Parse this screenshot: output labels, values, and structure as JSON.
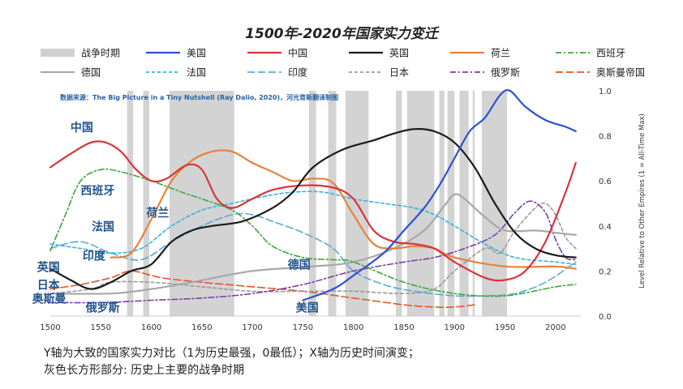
{
  "chart_data": {
    "type": "line",
    "title": "1500年-2020年国家实力变迁",
    "source": "数据来源：The Big Picture in a Tiny Nutshell (Ray Dalio, 2020)，河光育新翻译制图",
    "xlabel": "",
    "ylabel": "Level Relative to Other Empires (1 = All-Time Max)",
    "xlim": [
      1500,
      2025
    ],
    "ylim": [
      0,
      1.0
    ],
    "x_ticks": [
      1500,
      1550,
      1600,
      1650,
      1700,
      1750,
      1800,
      1850,
      1900,
      1950,
      2000
    ],
    "y_ticks": [
      "0.0",
      "0.2",
      "0.4",
      "0.6",
      "0.8",
      "1.0"
    ],
    "legend": [
      {
        "name": "战争时期",
        "color": "#d0d0d0",
        "dash": "bar"
      },
      {
        "name": "美国",
        "color": "#2f4fd4",
        "dash": "solid"
      },
      {
        "name": "中国",
        "color": "#d8343a",
        "dash": "solid"
      },
      {
        "name": "英国",
        "color": "#1a1a1a",
        "dash": "solid"
      },
      {
        "name": "荷兰",
        "color": "#e8823a",
        "dash": "solid"
      },
      {
        "name": "西班牙",
        "color": "#3aa83a",
        "dash": "dashdot"
      },
      {
        "name": "德国",
        "color": "#a8a8a8",
        "dash": "solid"
      },
      {
        "name": "法国",
        "color": "#33b3e0",
        "dash": "dash"
      },
      {
        "name": "印度",
        "color": "#5aa9d6",
        "dash": "longdash"
      },
      {
        "name": "日本",
        "color": "#9a9a9a",
        "dash": "dash"
      },
      {
        "name": "俄罗斯",
        "color": "#7a3fa8",
        "dash": "dashdot"
      },
      {
        "name": "奥斯曼帝国",
        "color": "#e0582a",
        "dash": "longdash"
      }
    ],
    "war_periods": [
      [
        1576,
        1582
      ],
      [
        1592,
        1598
      ],
      [
        1618,
        1682
      ],
      [
        1756,
        1763
      ],
      [
        1775,
        1783
      ],
      [
        1792,
        1815
      ],
      [
        1842,
        1848
      ],
      [
        1853,
        1880
      ],
      [
        1885,
        1890
      ],
      [
        1893,
        1900
      ],
      [
        1905,
        1914
      ],
      [
        1918,
        1920
      ],
      [
        1927,
        1952
      ]
    ],
    "series": [
      {
        "name": "中国",
        "points": [
          [
            1500,
            0.66
          ],
          [
            1520,
            0.72
          ],
          [
            1540,
            0.77
          ],
          [
            1555,
            0.77
          ],
          [
            1570,
            0.73
          ],
          [
            1585,
            0.65
          ],
          [
            1600,
            0.6
          ],
          [
            1615,
            0.61
          ],
          [
            1635,
            0.67
          ],
          [
            1650,
            0.65
          ],
          [
            1665,
            0.52
          ],
          [
            1680,
            0.48
          ],
          [
            1700,
            0.52
          ],
          [
            1720,
            0.56
          ],
          [
            1750,
            0.58
          ],
          [
            1780,
            0.57
          ],
          [
            1800,
            0.52
          ],
          [
            1820,
            0.38
          ],
          [
            1840,
            0.33
          ],
          [
            1860,
            0.32
          ],
          [
            1880,
            0.3
          ],
          [
            1900,
            0.24
          ],
          [
            1930,
            0.17
          ],
          [
            1950,
            0.16
          ],
          [
            1970,
            0.2
          ],
          [
            1990,
            0.33
          ],
          [
            2010,
            0.55
          ],
          [
            2020,
            0.68
          ]
        ]
      },
      {
        "name": "美国",
        "points": [
          [
            1750,
            0.07
          ],
          [
            1780,
            0.12
          ],
          [
            1800,
            0.18
          ],
          [
            1830,
            0.28
          ],
          [
            1850,
            0.38
          ],
          [
            1870,
            0.48
          ],
          [
            1885,
            0.58
          ],
          [
            1900,
            0.7
          ],
          [
            1915,
            0.82
          ],
          [
            1930,
            0.88
          ],
          [
            1945,
            0.98
          ],
          [
            1955,
            1.0
          ],
          [
            1970,
            0.93
          ],
          [
            1990,
            0.87
          ],
          [
            2010,
            0.84
          ],
          [
            2020,
            0.82
          ]
        ]
      },
      {
        "name": "英国",
        "points": [
          [
            1500,
            0.21
          ],
          [
            1520,
            0.16
          ],
          [
            1540,
            0.12
          ],
          [
            1560,
            0.15
          ],
          [
            1580,
            0.2
          ],
          [
            1600,
            0.23
          ],
          [
            1620,
            0.33
          ],
          [
            1640,
            0.38
          ],
          [
            1660,
            0.4
          ],
          [
            1690,
            0.42
          ],
          [
            1720,
            0.48
          ],
          [
            1740,
            0.55
          ],
          [
            1760,
            0.66
          ],
          [
            1790,
            0.74
          ],
          [
            1820,
            0.78
          ],
          [
            1840,
            0.81
          ],
          [
            1860,
            0.83
          ],
          [
            1880,
            0.82
          ],
          [
            1900,
            0.77
          ],
          [
            1920,
            0.66
          ],
          [
            1940,
            0.5
          ],
          [
            1960,
            0.37
          ],
          [
            1980,
            0.3
          ],
          [
            2000,
            0.27
          ],
          [
            2020,
            0.26
          ]
        ]
      },
      {
        "name": "荷兰",
        "points": [
          [
            1560,
            0.26
          ],
          [
            1580,
            0.28
          ],
          [
            1600,
            0.43
          ],
          [
            1620,
            0.6
          ],
          [
            1640,
            0.69
          ],
          [
            1660,
            0.73
          ],
          [
            1680,
            0.73
          ],
          [
            1700,
            0.68
          ],
          [
            1720,
            0.64
          ],
          [
            1740,
            0.6
          ],
          [
            1760,
            0.61
          ],
          [
            1780,
            0.59
          ],
          [
            1800,
            0.45
          ],
          [
            1820,
            0.32
          ],
          [
            1840,
            0.3
          ],
          [
            1860,
            0.31
          ],
          [
            1880,
            0.3
          ],
          [
            1900,
            0.26
          ],
          [
            1950,
            0.22
          ],
          [
            2000,
            0.22
          ],
          [
            2020,
            0.21
          ]
        ]
      },
      {
        "name": "西班牙",
        "points": [
          [
            1500,
            0.29
          ],
          [
            1515,
            0.45
          ],
          [
            1530,
            0.6
          ],
          [
            1550,
            0.65
          ],
          [
            1570,
            0.64
          ],
          [
            1600,
            0.6
          ],
          [
            1630,
            0.55
          ],
          [
            1650,
            0.52
          ],
          [
            1680,
            0.47
          ],
          [
            1700,
            0.4
          ],
          [
            1720,
            0.31
          ],
          [
            1750,
            0.26
          ],
          [
            1780,
            0.25
          ],
          [
            1800,
            0.24
          ],
          [
            1850,
            0.15
          ],
          [
            1900,
            0.1
          ],
          [
            1950,
            0.09
          ],
          [
            2000,
            0.13
          ],
          [
            2020,
            0.14
          ]
        ]
      },
      {
        "name": "德国",
        "points": [
          [
            1500,
            0.1
          ],
          [
            1560,
            0.1
          ],
          [
            1600,
            0.12
          ],
          [
            1640,
            0.15
          ],
          [
            1700,
            0.2
          ],
          [
            1760,
            0.22
          ],
          [
            1800,
            0.24
          ],
          [
            1840,
            0.3
          ],
          [
            1870,
            0.38
          ],
          [
            1890,
            0.49
          ],
          [
            1900,
            0.54
          ],
          [
            1910,
            0.52
          ],
          [
            1930,
            0.44
          ],
          [
            1950,
            0.38
          ],
          [
            1980,
            0.38
          ],
          [
            2000,
            0.37
          ],
          [
            2020,
            0.36
          ]
        ]
      },
      {
        "name": "法国",
        "points": [
          [
            1500,
            0.32
          ],
          [
            1530,
            0.3
          ],
          [
            1560,
            0.28
          ],
          [
            1590,
            0.3
          ],
          [
            1620,
            0.4
          ],
          [
            1650,
            0.47
          ],
          [
            1680,
            0.5
          ],
          [
            1710,
            0.53
          ],
          [
            1740,
            0.55
          ],
          [
            1770,
            0.55
          ],
          [
            1800,
            0.52
          ],
          [
            1830,
            0.5
          ],
          [
            1860,
            0.48
          ],
          [
            1880,
            0.45
          ],
          [
            1900,
            0.4
          ],
          [
            1930,
            0.32
          ],
          [
            1960,
            0.26
          ],
          [
            2000,
            0.24
          ],
          [
            2020,
            0.23
          ]
        ]
      },
      {
        "name": "印度",
        "points": [
          [
            1500,
            0.3
          ],
          [
            1530,
            0.33
          ],
          [
            1560,
            0.28
          ],
          [
            1590,
            0.25
          ],
          [
            1620,
            0.33
          ],
          [
            1650,
            0.4
          ],
          [
            1680,
            0.45
          ],
          [
            1700,
            0.45
          ],
          [
            1720,
            0.42
          ],
          [
            1750,
            0.37
          ],
          [
            1780,
            0.3
          ],
          [
            1800,
            0.2
          ],
          [
            1830,
            0.14
          ],
          [
            1860,
            0.11
          ],
          [
            1900,
            0.09
          ],
          [
            1930,
            0.09
          ],
          [
            1960,
            0.1
          ],
          [
            1990,
            0.15
          ],
          [
            2020,
            0.24
          ]
        ]
      },
      {
        "name": "日本",
        "points": [
          [
            1500,
            0.1
          ],
          [
            1540,
            0.12
          ],
          [
            1560,
            0.15
          ],
          [
            1600,
            0.15
          ],
          [
            1650,
            0.13
          ],
          [
            1700,
            0.11
          ],
          [
            1750,
            0.11
          ],
          [
            1800,
            0.11
          ],
          [
            1850,
            0.1
          ],
          [
            1880,
            0.12
          ],
          [
            1900,
            0.2
          ],
          [
            1930,
            0.3
          ],
          [
            1945,
            0.28
          ],
          [
            1960,
            0.38
          ],
          [
            1980,
            0.48
          ],
          [
            1990,
            0.5
          ],
          [
            2000,
            0.45
          ],
          [
            2010,
            0.35
          ],
          [
            2020,
            0.3
          ]
        ]
      },
      {
        "name": "俄罗斯",
        "points": [
          [
            1500,
            0.06
          ],
          [
            1550,
            0.06
          ],
          [
            1600,
            0.07
          ],
          [
            1650,
            0.08
          ],
          [
            1700,
            0.1
          ],
          [
            1750,
            0.14
          ],
          [
            1800,
            0.2
          ],
          [
            1850,
            0.24
          ],
          [
            1880,
            0.26
          ],
          [
            1910,
            0.3
          ],
          [
            1940,
            0.36
          ],
          [
            1960,
            0.46
          ],
          [
            1975,
            0.51
          ],
          [
            1990,
            0.46
          ],
          [
            2000,
            0.34
          ],
          [
            2010,
            0.26
          ],
          [
            2020,
            0.25
          ]
        ]
      },
      {
        "name": "奥斯曼帝国",
        "points": [
          [
            1500,
            0.12
          ],
          [
            1530,
            0.14
          ],
          [
            1560,
            0.17
          ],
          [
            1580,
            0.2
          ],
          [
            1610,
            0.17
          ],
          [
            1650,
            0.15
          ],
          [
            1700,
            0.13
          ],
          [
            1750,
            0.11
          ],
          [
            1800,
            0.08
          ],
          [
            1850,
            0.05
          ],
          [
            1880,
            0.04
          ],
          [
            1900,
            0.04
          ],
          [
            1920,
            0.05
          ]
        ]
      }
    ],
    "country_labels": [
      {
        "text": "中国",
        "x": 1520,
        "y": 0.82
      },
      {
        "text": "西班牙",
        "x": 1530,
        "y": 0.54
      },
      {
        "text": "荷兰",
        "x": 1595,
        "y": 0.44
      },
      {
        "text": "法国",
        "x": 1541,
        "y": 0.38
      },
      {
        "text": "印度",
        "x": 1532,
        "y": 0.25
      },
      {
        "text": "德国",
        "x": 1735,
        "y": 0.21
      },
      {
        "text": "英国",
        "x": 1487,
        "y": 0.2
      },
      {
        "text": "日本",
        "x": 1487,
        "y": 0.12
      },
      {
        "text": "奥斯曼",
        "x": 1482,
        "y": 0.06
      },
      {
        "text": "俄罗斯",
        "x": 1535,
        "y": 0.02
      },
      {
        "text": "美国",
        "x": 1743,
        "y": 0.02
      }
    ]
  },
  "notes": {
    "line1": "Y轴为大致的国家实力对比（1为历史最强，0最低）；X轴为历史时间演变；",
    "line2": "灰色长方形部分: 历史上主要的战争时期"
  }
}
